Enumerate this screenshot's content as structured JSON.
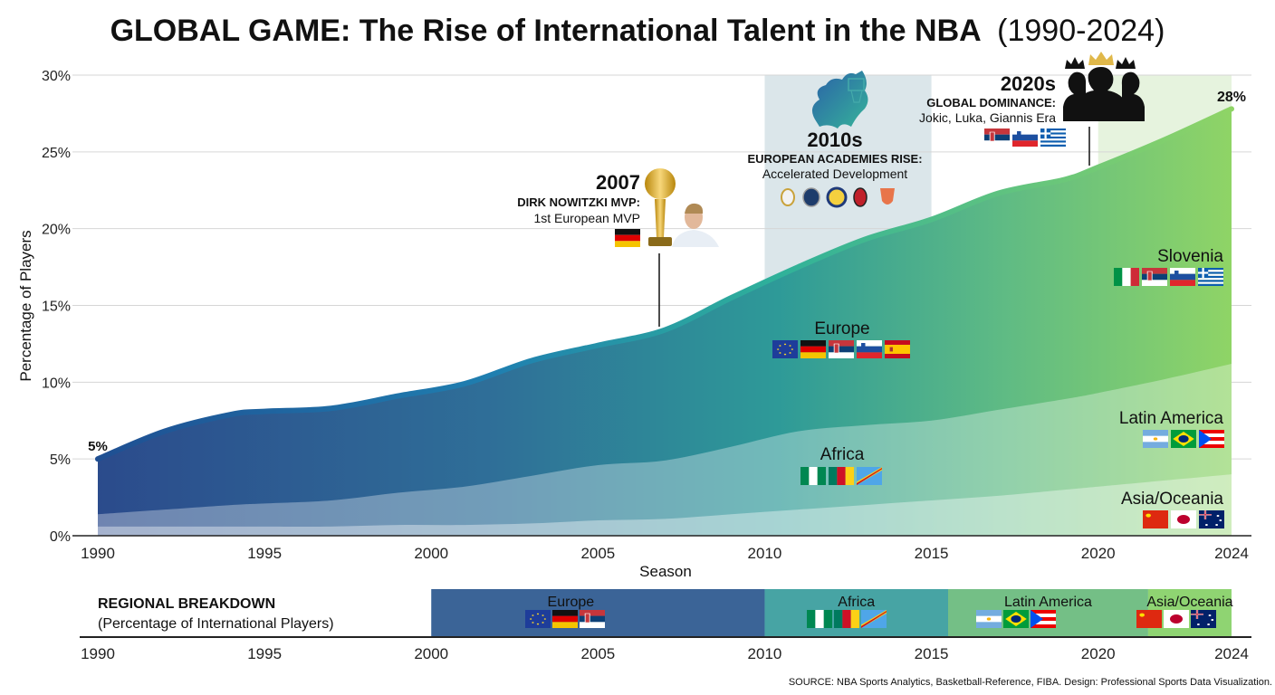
{
  "title": {
    "main": "GLOBAL GAME: The Rise of International Talent in the NBA",
    "years": "(1990-2024)"
  },
  "chart_data": {
    "type": "area",
    "xlabel": "Season",
    "ylabel": "Percentage of Players",
    "xlim": [
      1990,
      2024
    ],
    "ylim": [
      0,
      30
    ],
    "grid": true,
    "x_ticks": [
      "1990",
      "1995",
      "2000",
      "2005",
      "2010",
      "2015",
      "2020",
      "2024"
    ],
    "y_ticks": [
      "0%",
      "5%",
      "10%",
      "15%",
      "20%",
      "25%",
      "30%"
    ],
    "x": [
      1990,
      1992,
      1994,
      1995,
      1997,
      1999,
      2001,
      2003,
      2005,
      2007,
      2009,
      2011,
      2013,
      2015,
      2017,
      2019,
      2020,
      2022,
      2024
    ],
    "series": [
      {
        "values": [
          5.0,
          6.8,
          7.9,
          8.1,
          8.3,
          9.1,
          9.9,
          11.4,
          12.4,
          13.4,
          15.5,
          17.5,
          19.3,
          20.6,
          22.3,
          23.2,
          24.0,
          25.8,
          27.8
        ],
        "color": "#2f7f9c"
      },
      {
        "values": [
          1.4,
          1.7,
          2.0,
          2.1,
          2.3,
          2.8,
          3.2,
          3.9,
          4.6,
          4.9,
          5.8,
          6.8,
          7.2,
          7.5,
          8.2,
          8.9,
          9.3,
          10.2,
          11.2
        ],
        "color": "#a9cfd6"
      },
      {
        "values": [
          0.6,
          0.6,
          0.6,
          0.6,
          0.6,
          0.7,
          0.7,
          0.8,
          1.0,
          1.1,
          1.4,
          1.7,
          2.0,
          2.3,
          2.6,
          3.0,
          3.2,
          3.6,
          4.0
        ],
        "color": "#d4e8e4"
      }
    ],
    "start_label": "5%",
    "end_label": "28%",
    "highlight_periods": [
      {
        "from": 2010,
        "to": 2015,
        "color": "#dbe6ea"
      },
      {
        "from": 2020,
        "to": 2024,
        "color": "#e6f3de"
      }
    ],
    "region_labels": [
      {
        "label": "Europe",
        "flags": [
          "eu",
          "de",
          "rs",
          "si",
          "es"
        ]
      },
      {
        "label": "Africa",
        "flags": [
          "ng",
          "cm",
          "cd"
        ]
      },
      {
        "label": "Slovenia",
        "flags": [
          "it",
          "rs",
          "si",
          "gr"
        ]
      },
      {
        "label": "Latin America",
        "flags": [
          "ar",
          "br",
          "pr"
        ]
      },
      {
        "label": "Asia/Oceania",
        "flags": [
          "cn",
          "jp",
          "au"
        ]
      }
    ],
    "annotations": [
      {
        "year": "2007",
        "heading": "DIRK NOWITZKI MVP:",
        "text": "1st European MVP",
        "flags": [
          "de"
        ],
        "icons": [
          "trophy-icon",
          "player-photo"
        ]
      },
      {
        "year": "2010s",
        "heading": "EUROPEAN ACADEMIES RISE:",
        "text": "Accelerated Development",
        "icons": [
          "europe-map-icon",
          "club-logos"
        ]
      },
      {
        "year": "2020s",
        "heading": "GLOBAL DOMINANCE:",
        "text": "Jokic, Luka, Giannis Era",
        "flags": [
          "rs",
          "si",
          "gr"
        ],
        "icons": [
          "crowned-silhouettes-icon"
        ]
      }
    ]
  },
  "breakdown": {
    "title": "REGIONAL BREAKDOWN",
    "subtitle": "(Percentage of International Players)",
    "x_ticks": [
      "1990",
      "1995",
      "2000",
      "2005",
      "2010",
      "2015",
      "2020",
      "2024"
    ],
    "bands": [
      {
        "label": "Europe",
        "from": 2000,
        "to": 2010,
        "color": "#3b6497",
        "flags": [
          "eu",
          "de",
          "rs"
        ]
      },
      {
        "label": "Africa",
        "from": 2010,
        "to": 2015.5,
        "color": "#47a4a4",
        "flags": [
          "ng",
          "cm",
          "cd"
        ]
      },
      {
        "label": "Latin America",
        "from": 2015.5,
        "to": 2021.5,
        "color": "#74bf86",
        "flags": [
          "ar",
          "br",
          "pr"
        ]
      },
      {
        "label": "Asia/Oceania",
        "from": 2021.5,
        "to": 2024,
        "color": "#8fd472",
        "flags": [
          "cn",
          "jp",
          "au"
        ]
      }
    ]
  },
  "source": "SOURCE: NBA Sports Analytics, Basketball-Reference, FIBA. Design: Professional Sports Data Visualization."
}
